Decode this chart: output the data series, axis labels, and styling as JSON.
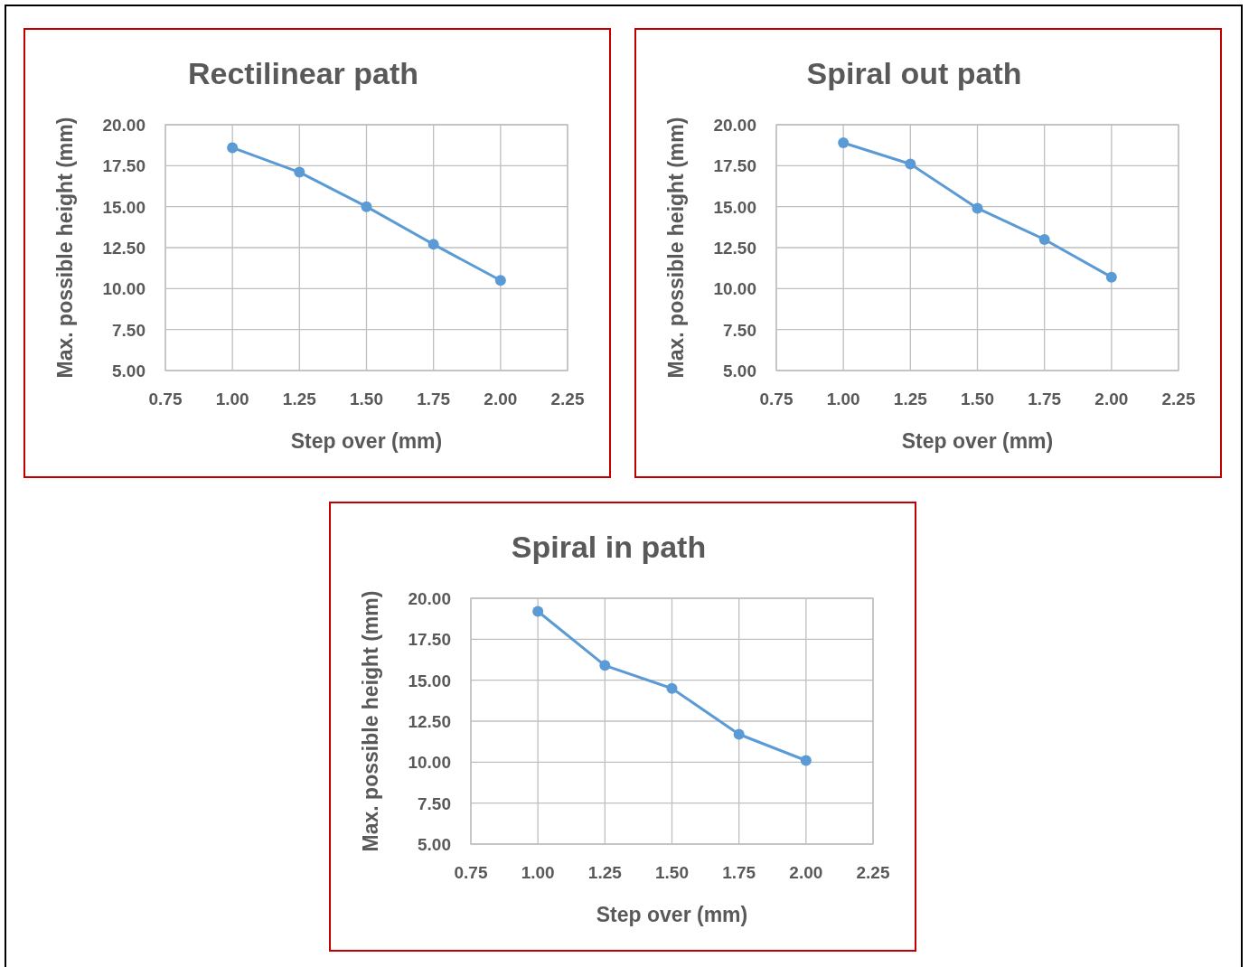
{
  "chart_data": [
    {
      "type": "line",
      "title": "Rectilinear path",
      "xlabel": "Step over (mm)",
      "ylabel": "Max. possible height (mm)",
      "x": [
        1,
        1.25,
        1.5,
        1.75,
        2
      ],
      "series": [
        {
          "color": "#5b9bd5",
          "values": [
            18.6,
            17.1,
            15.0,
            12.7,
            10.5
          ]
        }
      ],
      "xlim": [
        0.75,
        2.25
      ],
      "xticks": [
        {
          "value": 0.75,
          "label": "0.75"
        },
        {
          "value": 1,
          "label": "1.00"
        },
        {
          "value": 1.25,
          "label": "1.25"
        },
        {
          "value": 1.5,
          "label": "1.50"
        },
        {
          "value": 1.75,
          "label": "1.75"
        },
        {
          "value": 2,
          "label": "2.00"
        },
        {
          "value": 2.25,
          "label": "2.25"
        }
      ],
      "ylim": [
        5,
        20
      ],
      "yticks": [
        {
          "value": 5,
          "label": "5.00"
        },
        {
          "value": 7.5,
          "label": "7.50"
        },
        {
          "value": 10,
          "label": "10.00"
        },
        {
          "value": 12.5,
          "label": "12.50"
        },
        {
          "value": 15,
          "label": "15.00"
        },
        {
          "value": 17.5,
          "label": "17.50"
        },
        {
          "value": 20,
          "label": "20.00"
        }
      ],
      "grid": true,
      "marker": "circle"
    },
    {
      "type": "line",
      "title": "Spiral out path",
      "xlabel": "Step over (mm)",
      "ylabel": "Max. possible height (mm)",
      "x": [
        1,
        1.25,
        1.5,
        1.75,
        2
      ],
      "series": [
        {
          "color": "#5b9bd5",
          "values": [
            18.9,
            17.6,
            14.9,
            13.0,
            10.7
          ]
        }
      ],
      "xlim": [
        0.75,
        2.25
      ],
      "xticks": [
        {
          "value": 0.75,
          "label": "0.75"
        },
        {
          "value": 1,
          "label": "1.00"
        },
        {
          "value": 1.25,
          "label": "1.25"
        },
        {
          "value": 1.5,
          "label": "1.50"
        },
        {
          "value": 1.75,
          "label": "1.75"
        },
        {
          "value": 2,
          "label": "2.00"
        },
        {
          "value": 2.25,
          "label": "2.25"
        }
      ],
      "ylim": [
        5,
        20
      ],
      "yticks": [
        {
          "value": 5,
          "label": "5.00"
        },
        {
          "value": 7.5,
          "label": "7.50"
        },
        {
          "value": 10,
          "label": "10.00"
        },
        {
          "value": 12.5,
          "label": "12.50"
        },
        {
          "value": 15,
          "label": "15.00"
        },
        {
          "value": 17.5,
          "label": "17.50"
        },
        {
          "value": 20,
          "label": "20.00"
        }
      ],
      "grid": true,
      "marker": "circle"
    },
    {
      "type": "line",
      "title": "Spiral in path",
      "xlabel": "Step over (mm)",
      "ylabel": "Max. possible height (mm)",
      "x": [
        1,
        1.25,
        1.5,
        1.75,
        2
      ],
      "series": [
        {
          "color": "#5b9bd5",
          "values": [
            19.2,
            15.9,
            14.5,
            11.7,
            10.1
          ]
        }
      ],
      "xlim": [
        0.75,
        2.25
      ],
      "xticks": [
        {
          "value": 0.75,
          "label": "0.75"
        },
        {
          "value": 1,
          "label": "1.00"
        },
        {
          "value": 1.25,
          "label": "1.25"
        },
        {
          "value": 1.5,
          "label": "1.50"
        },
        {
          "value": 1.75,
          "label": "1.75"
        },
        {
          "value": 2,
          "label": "2.00"
        },
        {
          "value": 2.25,
          "label": "2.25"
        }
      ],
      "ylim": [
        5,
        20
      ],
      "yticks": [
        {
          "value": 5,
          "label": "5.00"
        },
        {
          "value": 7.5,
          "label": "7.50"
        },
        {
          "value": 10,
          "label": "10.00"
        },
        {
          "value": 12.5,
          "label": "12.50"
        },
        {
          "value": 15,
          "label": "15.00"
        },
        {
          "value": 17.5,
          "label": "17.50"
        },
        {
          "value": 20,
          "label": "20.00"
        }
      ],
      "grid": true,
      "marker": "circle"
    }
  ]
}
